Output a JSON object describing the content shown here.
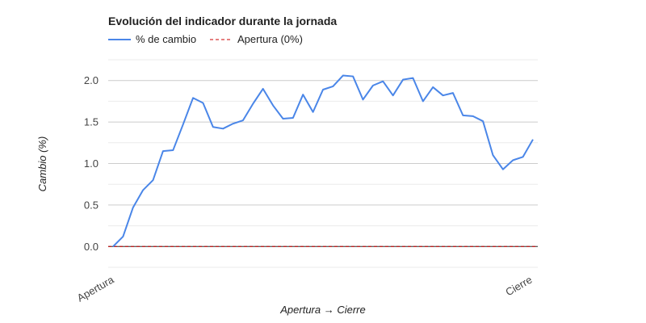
{
  "chart_data": {
    "type": "line",
    "title": "Evolución del indicador durante la jornada",
    "xlabel": "Apertura → Cierre",
    "ylabel": "Cambio (%)",
    "x_tick_labels": [
      "Apertura",
      "Cierre"
    ],
    "ylim": [
      -0.25,
      2.25
    ],
    "yticks": [
      0.0,
      0.5,
      1.0,
      1.5,
      2.0
    ],
    "ytick_labels": [
      "0.0",
      "0.5",
      "1.0",
      "1.5",
      "2.0"
    ],
    "grid": true,
    "legend_position": "top-left",
    "series": [
      {
        "name": "% de cambio",
        "color": "#4a86e8",
        "values": [
          0.0,
          0.12,
          0.47,
          0.68,
          0.8,
          1.15,
          1.16,
          1.47,
          1.79,
          1.73,
          1.44,
          1.42,
          1.48,
          1.52,
          1.72,
          1.9,
          1.7,
          1.54,
          1.55,
          1.83,
          1.62,
          1.89,
          1.93,
          2.06,
          2.05,
          1.77,
          1.94,
          1.99,
          1.82,
          2.01,
          2.03,
          1.75,
          1.92,
          1.82,
          1.85,
          1.58,
          1.57,
          1.51,
          1.1,
          0.93,
          1.04,
          1.08,
          1.29
        ]
      },
      {
        "name": "Apertura (0%)",
        "color": "#cc0000",
        "dashed": true,
        "values": [
          0.0,
          0.0
        ]
      }
    ]
  }
}
